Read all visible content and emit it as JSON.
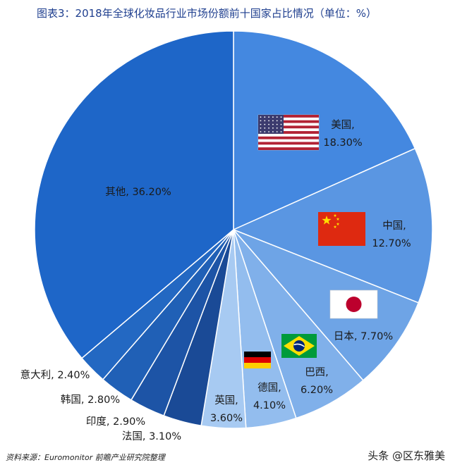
{
  "title": "图表3：2018年全球化妆品行业市场份额前十国家占比情况（单位：%）",
  "source": "资料来源：Euromonitor 前瞻产业研究院整理",
  "watermark": "头条 @区东雅美",
  "chart_data": {
    "type": "pie",
    "title": "图表3：2018年全球化妆品行业市场份额前十国家占比情况（单位：%）",
    "unit": "%",
    "slices": [
      {
        "label": "美国",
        "value_text": "18.30%",
        "value": 18.3,
        "color": "#4488e0",
        "flag": "us-flag-icon"
      },
      {
        "label": "中国",
        "value_text": "12.70%",
        "value": 12.7,
        "color": "#5a96e2",
        "flag": "cn-flag-icon"
      },
      {
        "label": "日本",
        "value_text": "7.70%",
        "value": 7.7,
        "color": "#6ea4e6",
        "flag": "jp-flag-icon"
      },
      {
        "label": "巴西",
        "value_text": "6.20%",
        "value": 6.2,
        "color": "#80b0ea",
        "flag": "br-flag-icon"
      },
      {
        "label": "德国",
        "value_text": "4.10%",
        "value": 4.1,
        "color": "#93bdee",
        "flag": "de-flag-icon"
      },
      {
        "label": "英国",
        "value_text": "3.60%",
        "value": 3.6,
        "color": "#a7caf2",
        "flag": ""
      },
      {
        "label": "法国",
        "value_text": "3.10%",
        "value": 3.1,
        "color": "#1a4a96",
        "flag": ""
      },
      {
        "label": "印度",
        "value_text": "2.90%",
        "value": 2.9,
        "color": "#1d54a6",
        "flag": ""
      },
      {
        "label": "韩国",
        "value_text": "2.80%",
        "value": 2.8,
        "color": "#2060b6",
        "flag": ""
      },
      {
        "label": "意大利",
        "value_text": "2.40%",
        "value": 2.4,
        "color": "#2368c2",
        "flag": ""
      },
      {
        "label": "其他",
        "value_text": "36.20%",
        "value": 36.2,
        "color": "#1e66c8",
        "flag": ""
      }
    ]
  }
}
